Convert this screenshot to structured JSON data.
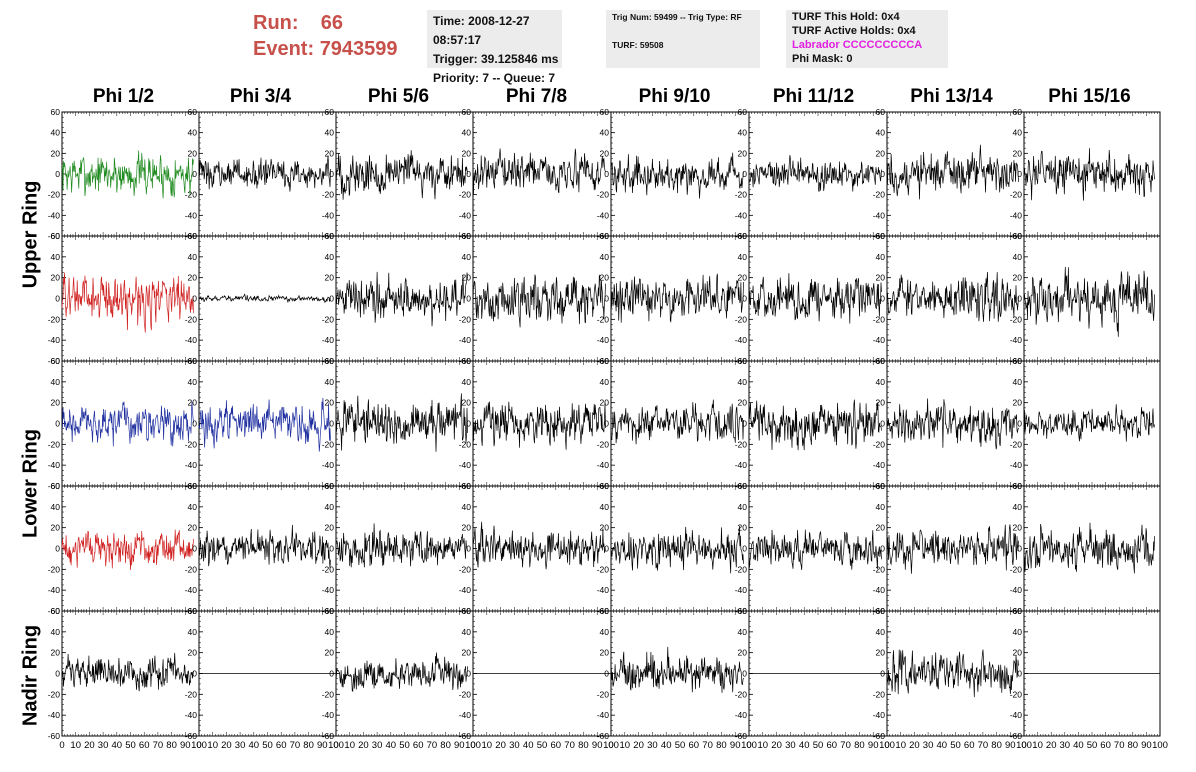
{
  "run_info": {
    "run_label": "Run:",
    "run_value": "66",
    "event_label": "Event:",
    "event_value": "7943599"
  },
  "time_box": {
    "time": "Time: 2008-12-27 08:57:17",
    "trigger": "Trigger: 39.125846 ms",
    "priority": "Priority: 7 -- Queue: 7"
  },
  "trig_box": {
    "trig_num": "Trig Num: 59499 -- Trig Type: RF",
    "turf": "TURF: 59508"
  },
  "turf_box": {
    "this_hold": "TURF This Hold: 0x4",
    "active_holds": "TURF Active Holds: 0x4",
    "labrador": "Labrador CCCCCCCCCA",
    "phi_mask": "Phi Mask: 0"
  },
  "columns": [
    "Phi 1/2",
    "Phi 3/4",
    "Phi 5/6",
    "Phi 7/8",
    "Phi 9/10",
    "Phi 11/12",
    "Phi 13/14",
    "Phi 15/16"
  ],
  "rows": [
    {
      "label": "Upper Ring",
      "span": [
        0,
        1
      ]
    },
    {
      "label": "Lower Ring",
      "span": [
        2,
        3
      ]
    },
    {
      "label": "Nadir Ring",
      "span": [
        4,
        4
      ]
    }
  ],
  "chart_data": {
    "type": "line",
    "title": "",
    "xlabel": "",
    "ylabel": "",
    "xlim": [
      0,
      100
    ],
    "ylim": [
      -60,
      60
    ],
    "y_ticks": [
      -60,
      -40,
      -20,
      0,
      20,
      40,
      60
    ],
    "x_ticks": [
      0,
      10,
      20,
      30,
      40,
      50,
      60,
      70,
      80,
      90,
      100
    ],
    "samples_per_trace": 260,
    "trace_x_end": 96,
    "colors": {
      "default": "#000000",
      "green": "#1f8a1f",
      "red": "#d02020",
      "blue": "#1f2fa0"
    },
    "panels": [
      {
        "row": 0,
        "col": 0,
        "color": "green",
        "amp": 15,
        "flat": false
      },
      {
        "row": 0,
        "col": 1,
        "color": "default",
        "amp": 10,
        "flat": false
      },
      {
        "row": 0,
        "col": 2,
        "color": "default",
        "amp": 15,
        "flat": false
      },
      {
        "row": 0,
        "col": 3,
        "color": "default",
        "amp": 13,
        "flat": false
      },
      {
        "row": 0,
        "col": 4,
        "color": "default",
        "amp": 12,
        "flat": false
      },
      {
        "row": 0,
        "col": 5,
        "color": "default",
        "amp": 11,
        "flat": false
      },
      {
        "row": 0,
        "col": 6,
        "color": "default",
        "amp": 15,
        "flat": false
      },
      {
        "row": 0,
        "col": 7,
        "color": "default",
        "amp": 14,
        "flat": false
      },
      {
        "row": 1,
        "col": 0,
        "color": "red",
        "amp": 16,
        "flat": false
      },
      {
        "row": 1,
        "col": 1,
        "color": "default",
        "amp": 2,
        "flat": false
      },
      {
        "row": 1,
        "col": 2,
        "color": "default",
        "amp": 15,
        "flat": false
      },
      {
        "row": 1,
        "col": 3,
        "color": "default",
        "amp": 16,
        "flat": false
      },
      {
        "row": 1,
        "col": 4,
        "color": "default",
        "amp": 15,
        "flat": false
      },
      {
        "row": 1,
        "col": 5,
        "color": "default",
        "amp": 15,
        "flat": false
      },
      {
        "row": 1,
        "col": 6,
        "color": "default",
        "amp": 15,
        "flat": false
      },
      {
        "row": 1,
        "col": 7,
        "color": "default",
        "amp": 17,
        "flat": false
      },
      {
        "row": 2,
        "col": 0,
        "color": "blue",
        "amp": 13,
        "flat": false
      },
      {
        "row": 2,
        "col": 1,
        "color": "blue",
        "amp": 13,
        "flat": false
      },
      {
        "row": 2,
        "col": 2,
        "color": "default",
        "amp": 15,
        "flat": false
      },
      {
        "row": 2,
        "col": 3,
        "color": "default",
        "amp": 15,
        "flat": false
      },
      {
        "row": 2,
        "col": 4,
        "color": "default",
        "amp": 13,
        "flat": false
      },
      {
        "row": 2,
        "col": 5,
        "color": "default",
        "amp": 16,
        "flat": false
      },
      {
        "row": 2,
        "col": 6,
        "color": "default",
        "amp": 14,
        "flat": false
      },
      {
        "row": 2,
        "col": 7,
        "color": "default",
        "amp": 10,
        "flat": false
      },
      {
        "row": 3,
        "col": 0,
        "color": "red",
        "amp": 12,
        "flat": false
      },
      {
        "row": 3,
        "col": 1,
        "color": "default",
        "amp": 12,
        "flat": false
      },
      {
        "row": 3,
        "col": 2,
        "color": "default",
        "amp": 13,
        "flat": false
      },
      {
        "row": 3,
        "col": 3,
        "color": "default",
        "amp": 13,
        "flat": false
      },
      {
        "row": 3,
        "col": 4,
        "color": "default",
        "amp": 13,
        "flat": false
      },
      {
        "row": 3,
        "col": 5,
        "color": "default",
        "amp": 12,
        "flat": false
      },
      {
        "row": 3,
        "col": 6,
        "color": "default",
        "amp": 13,
        "flat": false
      },
      {
        "row": 3,
        "col": 7,
        "color": "default",
        "amp": 15,
        "flat": false
      },
      {
        "row": 4,
        "col": 0,
        "color": "default",
        "amp": 11,
        "flat": false
      },
      {
        "row": 4,
        "col": 1,
        "color": "default",
        "amp": 0,
        "flat": true
      },
      {
        "row": 4,
        "col": 2,
        "color": "default",
        "amp": 11,
        "flat": false
      },
      {
        "row": 4,
        "col": 3,
        "color": "default",
        "amp": 0,
        "flat": true
      },
      {
        "row": 4,
        "col": 4,
        "color": "default",
        "amp": 13,
        "flat": false
      },
      {
        "row": 4,
        "col": 5,
        "color": "default",
        "amp": 0,
        "flat": true
      },
      {
        "row": 4,
        "col": 6,
        "color": "default",
        "amp": 14,
        "flat": false
      },
      {
        "row": 4,
        "col": 7,
        "color": "default",
        "amp": 0,
        "flat": true
      }
    ]
  }
}
